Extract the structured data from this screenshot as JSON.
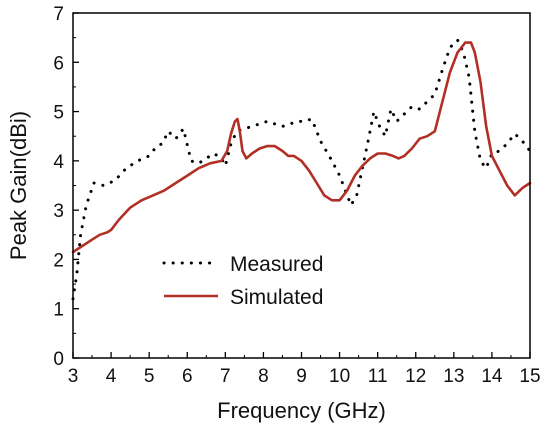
{
  "chart_data": {
    "type": "line",
    "xlabel": "Frequency (GHz)",
    "ylabel": "Peak Gain(dBi)",
    "xlim": [
      3,
      15
    ],
    "ylim": [
      0,
      7
    ],
    "xticks": [
      "3",
      "4",
      "5",
      "6",
      "7",
      "8",
      "9",
      "10",
      "11",
      "12",
      "13",
      "14",
      "15"
    ],
    "yticks": [
      "0",
      "1",
      "2",
      "3",
      "4",
      "5",
      "6",
      "7"
    ],
    "grid": false,
    "legend": "lower-left",
    "series": [
      {
        "name": "Measured",
        "style": "dotted",
        "color": "#000000",
        "x": [
          3.0,
          3.1,
          3.2,
          3.35,
          3.55,
          3.8,
          4.1,
          4.4,
          4.7,
          5.0,
          5.2,
          5.35,
          5.5,
          5.7,
          5.9,
          6.1,
          6.3,
          6.5,
          6.7,
          6.9,
          7.0,
          7.15,
          7.3,
          7.5,
          7.7,
          7.9,
          8.1,
          8.3,
          8.5,
          8.7,
          8.9,
          9.1,
          9.25,
          9.35,
          9.5,
          9.65,
          9.8,
          10.0,
          10.15,
          10.3,
          10.45,
          10.6,
          10.75,
          10.9,
          11.05,
          11.2,
          11.35,
          11.5,
          11.7,
          11.9,
          12.1,
          12.3,
          12.5,
          12.7,
          12.9,
          13.1,
          13.25,
          13.4,
          13.55,
          13.7,
          13.85,
          14.0,
          14.2,
          14.4,
          14.6,
          14.8,
          15.0
        ],
        "y": [
          1.2,
          1.7,
          2.5,
          3.1,
          3.55,
          3.5,
          3.6,
          3.85,
          4.0,
          4.1,
          4.3,
          4.35,
          4.6,
          4.45,
          4.65,
          4.0,
          3.95,
          4.05,
          4.15,
          4.05,
          3.9,
          4.35,
          4.6,
          4.65,
          4.7,
          4.75,
          4.8,
          4.75,
          4.7,
          4.75,
          4.8,
          4.8,
          4.85,
          4.7,
          4.4,
          4.2,
          4.0,
          3.7,
          3.4,
          3.1,
          3.3,
          3.85,
          4.4,
          5.0,
          4.7,
          4.5,
          5.05,
          4.8,
          4.95,
          5.1,
          5.05,
          5.2,
          5.35,
          5.85,
          6.3,
          6.45,
          6.2,
          5.7,
          4.6,
          4.0,
          3.85,
          4.15,
          4.2,
          4.35,
          4.55,
          4.4,
          4.2
        ]
      },
      {
        "name": "Simulated",
        "style": "solid",
        "color": "#b22f26",
        "x": [
          3.0,
          3.2,
          3.5,
          3.7,
          3.9,
          4.0,
          4.2,
          4.5,
          4.8,
          5.1,
          5.4,
          5.7,
          6.0,
          6.3,
          6.6,
          6.9,
          7.05,
          7.15,
          7.25,
          7.32,
          7.38,
          7.45,
          7.55,
          7.7,
          7.9,
          8.1,
          8.3,
          8.5,
          8.65,
          8.8,
          9.0,
          9.2,
          9.4,
          9.6,
          9.8,
          10.0,
          10.2,
          10.4,
          10.6,
          10.8,
          11.0,
          11.2,
          11.4,
          11.55,
          11.7,
          11.9,
          12.1,
          12.3,
          12.5,
          12.7,
          12.9,
          13.1,
          13.3,
          13.45,
          13.55,
          13.7,
          13.85,
          14.0,
          14.2,
          14.4,
          14.6,
          14.8,
          15.0
        ],
        "y": [
          2.15,
          2.25,
          2.4,
          2.5,
          2.55,
          2.6,
          2.8,
          3.05,
          3.2,
          3.3,
          3.4,
          3.55,
          3.7,
          3.85,
          3.95,
          4.0,
          4.2,
          4.55,
          4.8,
          4.85,
          4.6,
          4.2,
          4.05,
          4.15,
          4.25,
          4.3,
          4.3,
          4.2,
          4.1,
          4.1,
          4.0,
          3.8,
          3.55,
          3.3,
          3.2,
          3.2,
          3.4,
          3.7,
          3.9,
          4.05,
          4.15,
          4.15,
          4.1,
          4.05,
          4.1,
          4.25,
          4.45,
          4.5,
          4.6,
          5.2,
          5.8,
          6.2,
          6.4,
          6.4,
          6.2,
          5.6,
          4.7,
          4.1,
          3.8,
          3.5,
          3.3,
          3.45,
          3.55
        ]
      }
    ]
  }
}
